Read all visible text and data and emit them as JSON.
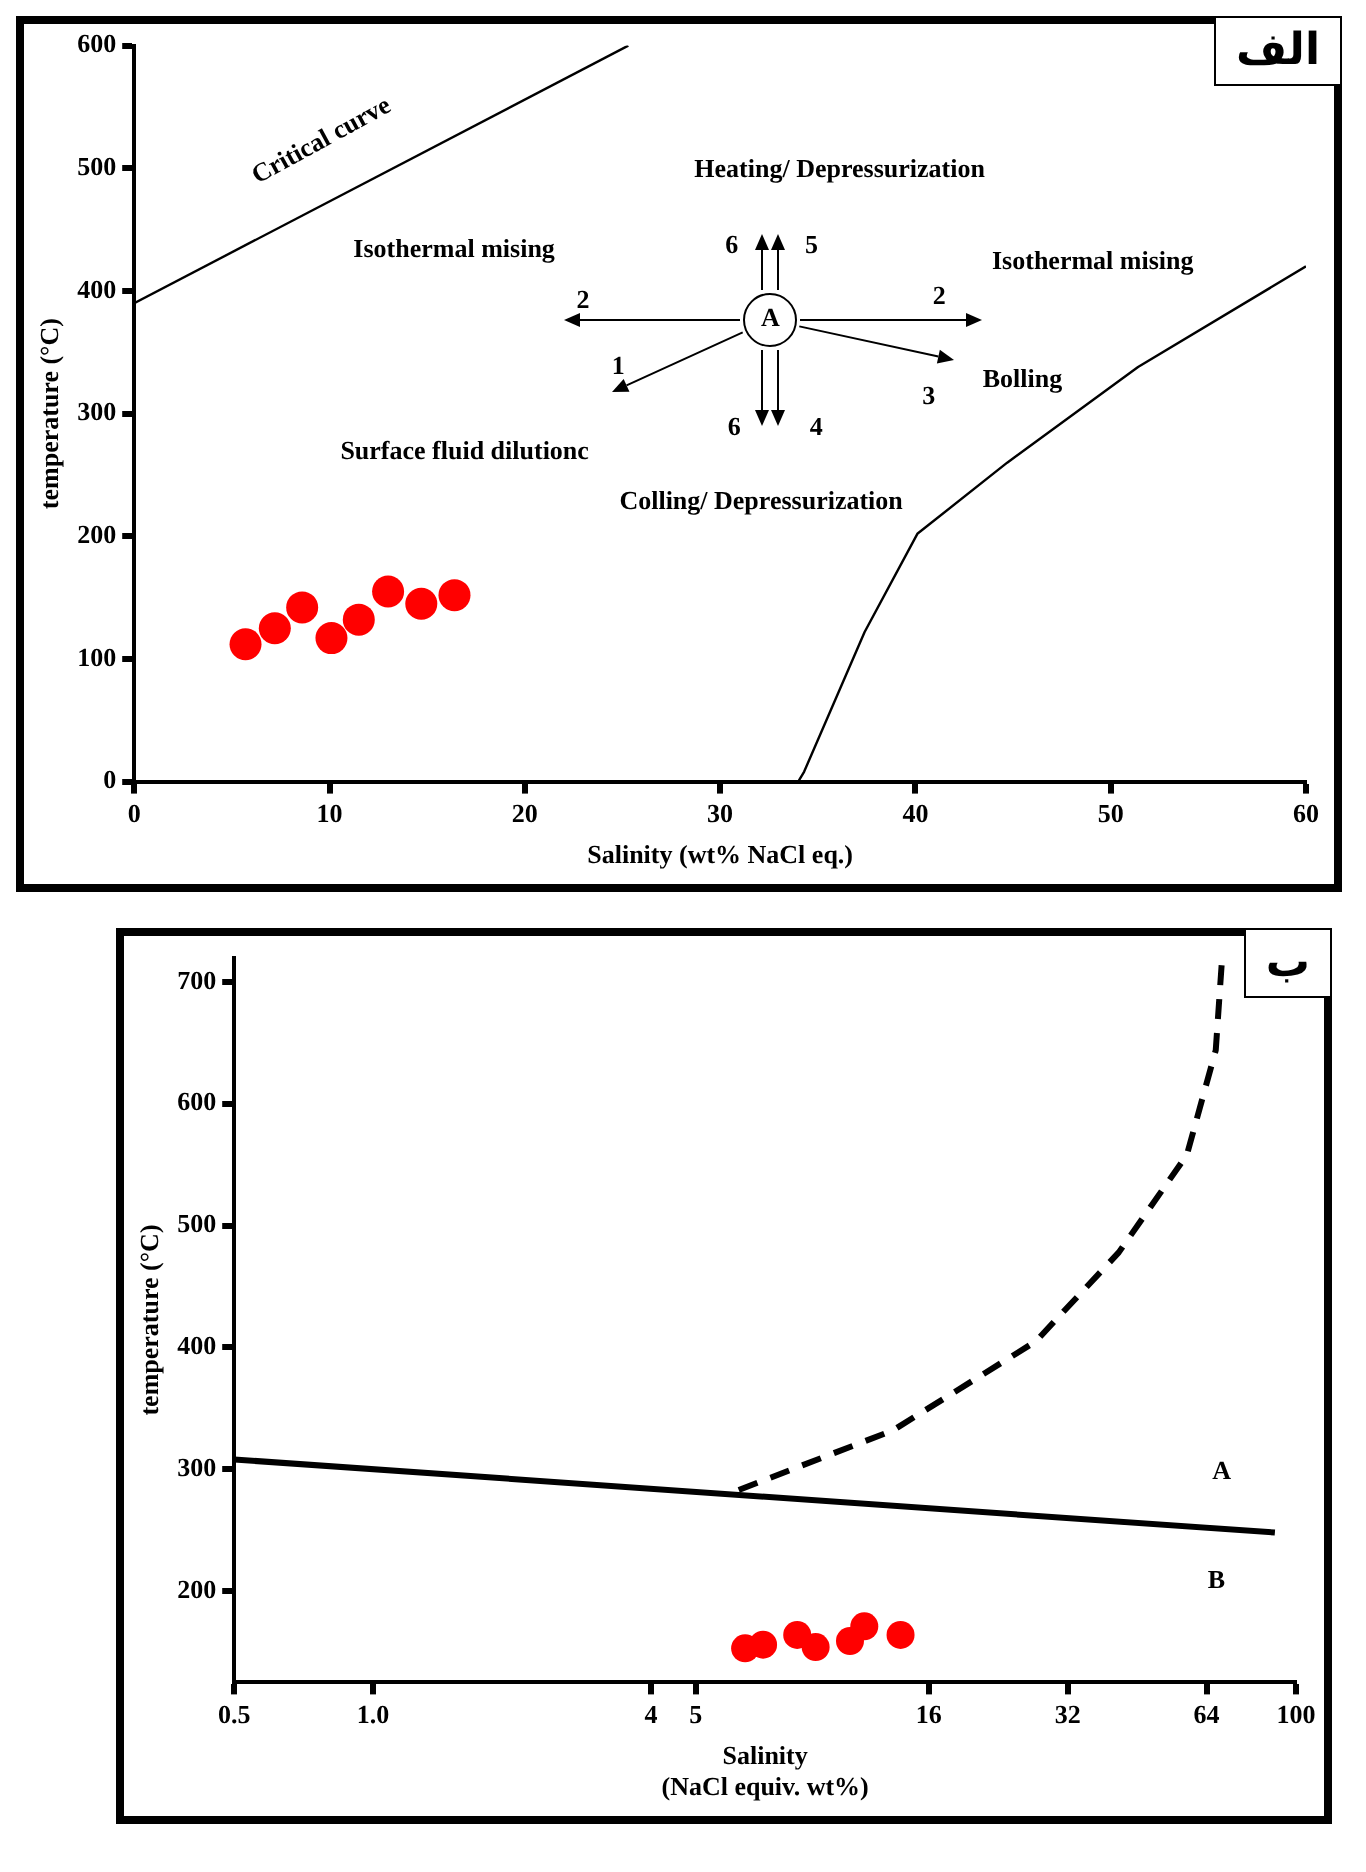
{
  "chart_data": [
    {
      "type": "scatter",
      "xlabel": "Salinity (wt% NaCl eq.)",
      "ylabel": "temperature (°C)",
      "xlim": [
        0,
        60
      ],
      "ylim": [
        0,
        600
      ],
      "xticks": [
        0,
        10,
        20,
        30,
        40,
        50,
        60
      ],
      "yticks": [
        0,
        100,
        200,
        300,
        400,
        500,
        600
      ],
      "grid": false,
      "legend": false,
      "series": [
        {
          "type": "line",
          "color": "#000000",
          "marker": "none",
          "x": [
            0,
            25.3
          ],
          "values": [
            390,
            600
          ]
        },
        {
          "type": "line",
          "color": "#000000",
          "marker": "none",
          "x": [
            34.0,
            34.3,
            37.4,
            40.1,
            44.7,
            51.4,
            60
          ],
          "values": [
            0,
            8,
            122,
            202,
            260,
            338,
            420
          ]
        },
        {
          "type": "scatter",
          "color": "#ff0000",
          "marker": "circle",
          "x": [
            5.7,
            7.2,
            8.6,
            10.1,
            11.5,
            13.0,
            14.7,
            16.4
          ],
          "values": [
            112,
            125,
            142,
            117,
            132,
            155,
            145,
            152
          ]
        }
      ],
      "annotations": [
        "A",
        "الف",
        "Critical curve",
        "Heating/ Depressurization",
        "Isothermal mising",
        "Isothermal mising",
        "Bolling",
        "Surface fluid dilutionc",
        "Colling/ Depressurization",
        "6",
        "5",
        "2",
        "1",
        "2",
        "3",
        "6",
        "4"
      ]
    },
    {
      "type": "scatter",
      "xlabel": "Salinity\n(NaCl equiv. wt%)",
      "ylabel": "temperature (°C)",
      "log": "x",
      "xlim": [
        0.5,
        100
      ],
      "ylim": [
        125,
        720
      ],
      "xticks": [
        0.5,
        {
          "value": 1,
          "label": "1.0"
        },
        4,
        5,
        16,
        32,
        64,
        100
      ],
      "yticks": [
        200,
        300,
        400,
        500,
        600,
        700
      ],
      "grid": false,
      "legend": false,
      "series": [
        {
          "type": "line",
          "color": "#000000",
          "marker": "none",
          "x": [
            0.5,
            90
          ],
          "values": [
            308,
            248
          ]
        },
        {
          "type": "line",
          "color": "#000000",
          "marker": "none",
          "line_style": "dashed",
          "x": [
            6.2,
            13.4,
            27.3,
            41.3,
            58,
            67,
            69
          ],
          "values": [
            283,
            332,
            405,
            478,
            558,
            644,
            714
          ]
        },
        {
          "type": "scatter",
          "color": "#ff0000",
          "marker": "circle",
          "x": [
            6.4,
            7.0,
            8.3,
            9.1,
            10.8,
            11.6,
            13.9
          ],
          "values": [
            153,
            156,
            164,
            154,
            159,
            171,
            164
          ]
        }
      ],
      "annotations": [
        "ب",
        "A",
        "B"
      ]
    }
  ]
}
